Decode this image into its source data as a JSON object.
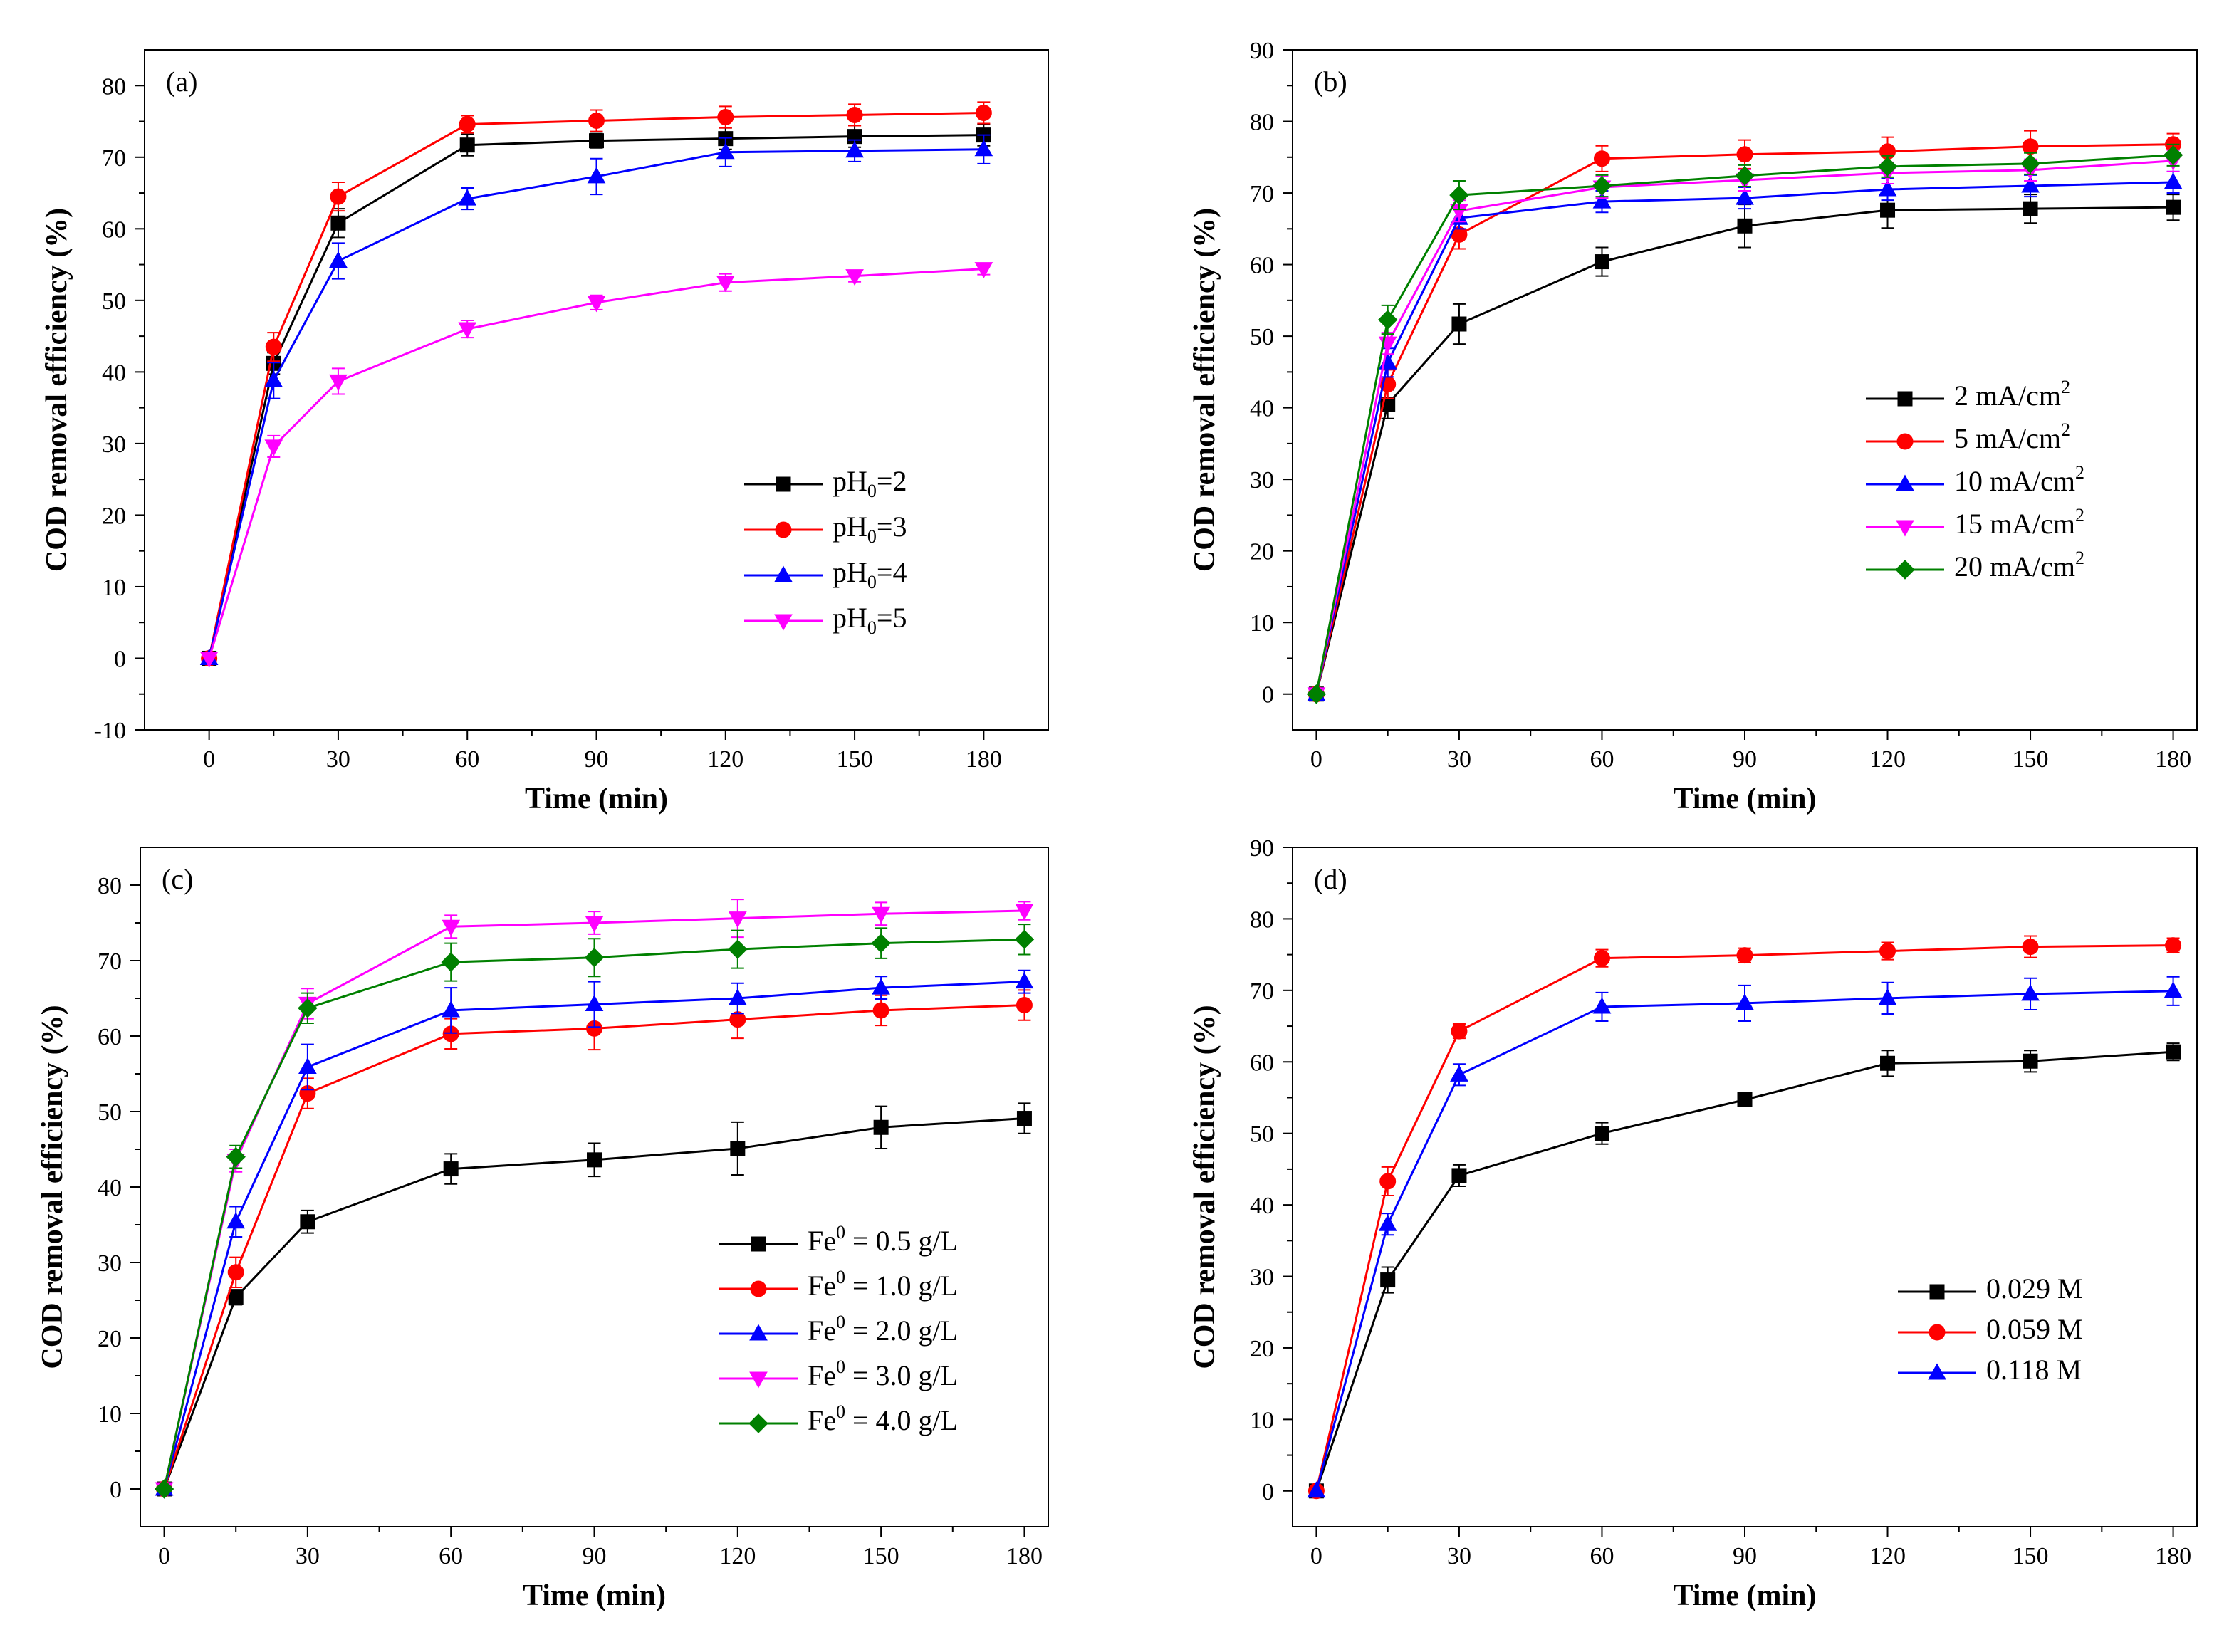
{
  "figure": {
    "panels": [
      "a",
      "b",
      "c",
      "d"
    ]
  },
  "colors": {
    "black": "#000000",
    "red": "#ff0000",
    "blue": "#0000ff",
    "magenta": "#ff00ff",
    "green": "#008000"
  },
  "chart_data": [
    {
      "type": "line",
      "panel_label": "(a)",
      "xlabel": "Time (min)",
      "ylabel": "COD removal efficiency (%)",
      "xlim": [
        -15,
        195
      ],
      "ylim": [
        -10,
        85
      ],
      "xticks": [
        0,
        30,
        60,
        90,
        120,
        150,
        180
      ],
      "yticks": [
        -10,
        0,
        10,
        20,
        30,
        40,
        50,
        60,
        70,
        80
      ],
      "legend_position": "lower-right",
      "x": [
        0,
        15,
        30,
        60,
        90,
        120,
        150,
        180
      ],
      "series": [
        {
          "name": "pH0=2",
          "legend": {
            "base": "pH",
            "sub": "0",
            "rest": "=2"
          },
          "color": "#000000",
          "marker": "square",
          "values": [
            0,
            41.2,
            60.8,
            71.7,
            72.3,
            72.6,
            72.9,
            73.1
          ],
          "errors": [
            0,
            1.5,
            2.0,
            1.5,
            1.0,
            1.5,
            1.5,
            1.5
          ]
        },
        {
          "name": "pH0=3",
          "legend": {
            "base": "pH",
            "sub": "0",
            "rest": "=3"
          },
          "color": "#ff0000",
          "marker": "circle",
          "values": [
            0,
            43.5,
            64.5,
            74.6,
            75.1,
            75.6,
            75.9,
            76.2
          ],
          "errors": [
            0,
            2.0,
            2.0,
            1.2,
            1.5,
            1.5,
            1.5,
            1.5
          ]
        },
        {
          "name": "pH0=4",
          "legend": {
            "base": "pH",
            "sub": "0",
            "rest": "=4"
          },
          "color": "#0000ff",
          "marker": "triangle-up",
          "values": [
            0,
            38.8,
            55.5,
            64.2,
            67.3,
            70.7,
            70.9,
            71.1
          ],
          "errors": [
            0,
            2.5,
            2.5,
            1.5,
            2.5,
            2.0,
            1.5,
            2.0
          ]
        },
        {
          "name": "pH0=5",
          "legend": {
            "base": "pH",
            "sub": "0",
            "rest": "=5"
          },
          "color": "#ff00ff",
          "marker": "triangle-down",
          "values": [
            0,
            29.6,
            38.7,
            46.0,
            49.7,
            52.5,
            53.4,
            54.4
          ],
          "errors": [
            0,
            1.5,
            1.8,
            1.2,
            1.0,
            1.2,
            0.8,
            0.8
          ]
        }
      ]
    },
    {
      "type": "line",
      "panel_label": "(b)",
      "xlabel": "Time (min)",
      "ylabel": "COD removal efficiency (%)",
      "xlim": [
        -5,
        185
      ],
      "ylim": [
        -5,
        90
      ],
      "xticks": [
        0,
        30,
        60,
        90,
        120,
        150,
        180
      ],
      "yticks": [
        0,
        10,
        20,
        30,
        40,
        50,
        60,
        70,
        80,
        90
      ],
      "legend_position": "center-right",
      "x": [
        0,
        15,
        30,
        60,
        90,
        120,
        150,
        180
      ],
      "series": [
        {
          "name": "2 mA/cm2",
          "legend": {
            "base": "2 mA/cm",
            "sup": "2"
          },
          "color": "#000000",
          "marker": "square",
          "values": [
            0,
            40.5,
            51.7,
            60.4,
            65.4,
            67.6,
            67.8,
            68.0
          ],
          "errors": [
            0,
            2.0,
            2.8,
            2.0,
            3.0,
            2.5,
            2.0,
            1.8
          ]
        },
        {
          "name": "5 mA/cm2",
          "legend": {
            "base": "5 mA/cm",
            "sup": "2"
          },
          "color": "#ff0000",
          "marker": "circle",
          "values": [
            0,
            43.3,
            64.2,
            74.8,
            75.4,
            75.8,
            76.5,
            76.8
          ],
          "errors": [
            0,
            2.0,
            2.0,
            1.8,
            2.0,
            2.0,
            2.2,
            1.5
          ]
        },
        {
          "name": "10 mA/cm2",
          "legend": {
            "base": "10 mA/cm",
            "sup": "2"
          },
          "color": "#0000ff",
          "marker": "triangle-up",
          "values": [
            0,
            46.3,
            66.5,
            68.8,
            69.3,
            70.5,
            71.0,
            71.5
          ],
          "errors": [
            0,
            2.0,
            1.5,
            1.5,
            1.5,
            1.5,
            1.5,
            1.5
          ]
        },
        {
          "name": "15 mA/cm2",
          "legend": {
            "base": "15 mA/cm",
            "sup": "2"
          },
          "color": "#ff00ff",
          "marker": "triangle-down",
          "values": [
            0,
            49.0,
            67.5,
            70.8,
            71.8,
            72.8,
            73.2,
            74.5
          ],
          "errors": [
            0,
            1.5,
            1.5,
            1.5,
            1.5,
            1.5,
            1.5,
            1.5
          ]
        },
        {
          "name": "20 mA/cm2",
          "legend": {
            "base": "20 mA/cm",
            "sup": "2"
          },
          "color": "#008000",
          "marker": "diamond",
          "values": [
            0,
            52.3,
            69.7,
            71.0,
            72.4,
            73.7,
            74.1,
            75.3
          ],
          "errors": [
            0,
            2.0,
            2.0,
            1.5,
            1.5,
            1.5,
            1.5,
            1.5
          ]
        }
      ]
    },
    {
      "type": "line",
      "panel_label": "(c)",
      "xlabel": "Time (min)",
      "ylabel": "COD removal efficiency (%)",
      "xlim": [
        -5,
        185
      ],
      "ylim": [
        -5,
        85
      ],
      "xticks": [
        0,
        30,
        60,
        90,
        120,
        150,
        180
      ],
      "yticks": [
        0,
        10,
        20,
        30,
        40,
        50,
        60,
        70,
        80
      ],
      "legend_position": "lower-right",
      "x": [
        0,
        15,
        30,
        60,
        90,
        120,
        150,
        180
      ],
      "series": [
        {
          "name": "Fe0 = 0.5 g/L",
          "legend": {
            "base": "Fe",
            "sup": "0",
            "rest": " = 0.5 g/L"
          },
          "color": "#000000",
          "marker": "square",
          "values": [
            0,
            25.4,
            35.4,
            42.4,
            43.6,
            45.1,
            47.9,
            49.1
          ],
          "errors": [
            0,
            1.0,
            1.5,
            2.0,
            2.2,
            3.5,
            2.8,
            2.0
          ]
        },
        {
          "name": "Fe0 = 1.0 g/L",
          "legend": {
            "base": "Fe",
            "sup": "0",
            "rest": " = 1.0 g/L"
          },
          "color": "#ff0000",
          "marker": "circle",
          "values": [
            0,
            28.7,
            52.4,
            60.3,
            61.0,
            62.2,
            63.4,
            64.1
          ],
          "errors": [
            0,
            2.0,
            2.0,
            2.0,
            2.8,
            2.5,
            2.0,
            2.0
          ]
        },
        {
          "name": "Fe0 = 2.0 g/L",
          "legend": {
            "base": "Fe",
            "sup": "0",
            "rest": " = 2.0 g/L"
          },
          "color": "#0000ff",
          "marker": "triangle-up",
          "values": [
            0,
            35.4,
            55.9,
            63.4,
            64.2,
            65.0,
            66.4,
            67.2
          ],
          "errors": [
            0,
            2.0,
            3.0,
            3.0,
            3.0,
            2.0,
            1.5,
            1.5
          ]
        },
        {
          "name": "Fe0 = 3.0 g/L",
          "legend": {
            "base": "Fe",
            "sup": "0",
            "rest": " = 3.0 g/L"
          },
          "color": "#ff00ff",
          "marker": "triangle-down",
          "values": [
            0,
            43.5,
            64.3,
            74.5,
            75.0,
            75.6,
            76.2,
            76.6
          ],
          "errors": [
            0,
            1.5,
            2.0,
            1.5,
            1.5,
            2.5,
            1.5,
            1.2
          ]
        },
        {
          "name": "Fe0 = 4.0 g/L",
          "legend": {
            "base": "Fe",
            "sup": "0",
            "rest": " = 4.0 g/L"
          },
          "color": "#008000",
          "marker": "diamond",
          "values": [
            0,
            44.0,
            63.7,
            69.8,
            70.4,
            71.5,
            72.3,
            72.8
          ],
          "errors": [
            0,
            1.5,
            2.0,
            2.5,
            2.5,
            2.5,
            2.0,
            2.0
          ]
        }
      ]
    },
    {
      "type": "line",
      "panel_label": "(d)",
      "xlabel": "Time (min)",
      "ylabel": "COD removal efficiency (%)",
      "xlim": [
        -5,
        185
      ],
      "ylim": [
        -5,
        90
      ],
      "xticks": [
        0,
        30,
        60,
        90,
        120,
        150,
        180
      ],
      "yticks": [
        0,
        10,
        20,
        30,
        40,
        50,
        60,
        70,
        80,
        90
      ],
      "legend_position": "lower-right",
      "x": [
        0,
        15,
        30,
        60,
        90,
        120,
        150,
        180
      ],
      "series": [
        {
          "name": "0.029 M",
          "legend": {
            "base": "0.029 M"
          },
          "color": "#000000",
          "marker": "square",
          "values": [
            0,
            29.5,
            44.1,
            50.0,
            54.7,
            59.8,
            60.1,
            61.4
          ],
          "errors": [
            0,
            1.8,
            1.5,
            1.5,
            0.8,
            1.8,
            1.5,
            1.2
          ]
        },
        {
          "name": "0.059 M",
          "legend": {
            "base": "0.059 M"
          },
          "color": "#ff0000",
          "marker": "circle",
          "values": [
            0,
            43.3,
            64.3,
            74.5,
            74.9,
            75.5,
            76.1,
            76.3
          ],
          "errors": [
            0,
            2.0,
            1.0,
            1.2,
            1.0,
            1.2,
            1.5,
            1.0
          ]
        },
        {
          "name": "0.118 M",
          "legend": {
            "base": "0.118 M"
          },
          "color": "#0000ff",
          "marker": "triangle-up",
          "values": [
            0,
            37.3,
            58.2,
            67.7,
            68.2,
            68.9,
            69.5,
            69.9
          ],
          "errors": [
            0,
            1.5,
            1.5,
            2.0,
            2.5,
            2.2,
            2.2,
            2.0
          ]
        }
      ]
    }
  ]
}
